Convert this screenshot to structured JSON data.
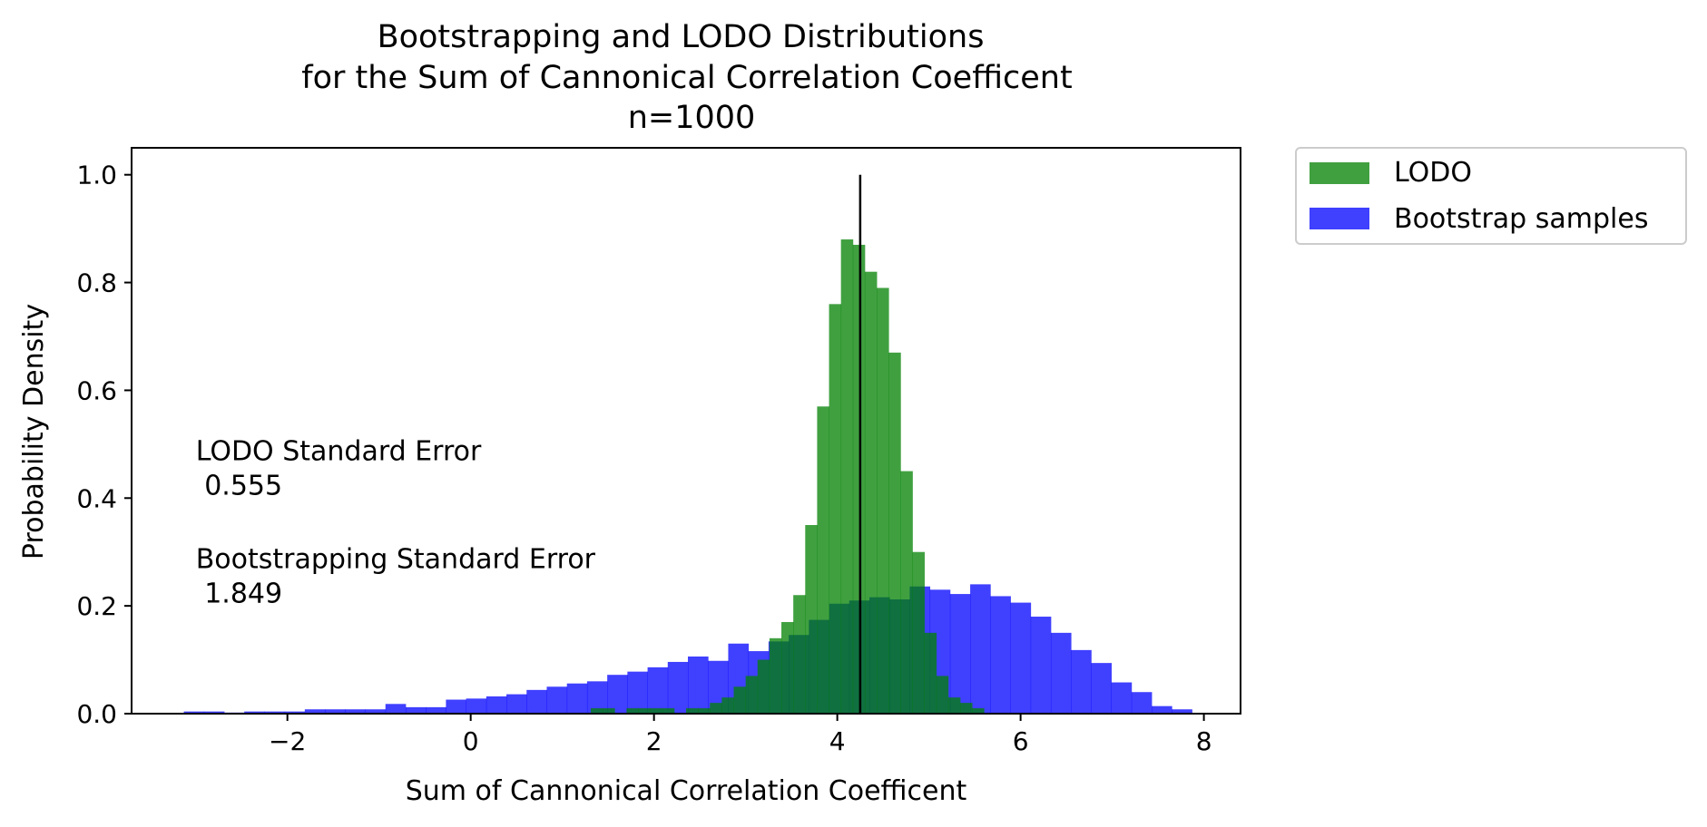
{
  "chart_data": {
    "type": "bar",
    "title_lines": [
      "Bootstrapping and LODO Distributions",
      "for the Sum of Cannonical Correlation Coefficent",
      "n=1000"
    ],
    "xlabel": "Sum of Cannonical Correlation Coefficent",
    "ylabel": "Probability Density",
    "xlim": [
      -3.7,
      8.4
    ],
    "ylim": [
      0,
      1.05
    ],
    "xticks": [
      -2,
      0,
      2,
      4,
      6,
      8
    ],
    "xtick_labels": [
      "−2",
      "0",
      "2",
      "4",
      "6",
      "8"
    ],
    "yticks": [
      0.0,
      0.2,
      0.4,
      0.6,
      0.8,
      1.0
    ],
    "ytick_labels": [
      "0.0",
      "0.2",
      "0.4",
      "0.6",
      "0.8",
      "1.0"
    ],
    "legend": {
      "placement": "outside upper right",
      "entries": [
        "LODO",
        "Bootstrap samples"
      ]
    },
    "series": [
      {
        "name": "LODO",
        "color": "#008000",
        "opacity": 0.75,
        "bin_edges": [
          1.31,
          1.44,
          1.57,
          1.7,
          1.83,
          1.96,
          2.09,
          2.22,
          2.35,
          2.48,
          2.61,
          2.74,
          2.87,
          3.0,
          3.13,
          3.26,
          3.39,
          3.52,
          3.65,
          3.78,
          3.91,
          4.04,
          4.17,
          4.3,
          4.43,
          4.56,
          4.69,
          4.82,
          4.95,
          5.08,
          5.21,
          5.34,
          5.47,
          5.6
        ],
        "values": [
          0.01,
          0.01,
          0.0,
          0.01,
          0.01,
          0.01,
          0.01,
          0.0,
          0.01,
          0.01,
          0.02,
          0.03,
          0.05,
          0.07,
          0.1,
          0.14,
          0.17,
          0.22,
          0.35,
          0.57,
          0.76,
          0.88,
          0.87,
          0.82,
          0.79,
          0.67,
          0.45,
          0.3,
          0.15,
          0.07,
          0.03,
          0.02,
          0.01
        ]
      },
      {
        "name": "Bootstrap samples",
        "color": "#0000ff",
        "opacity": 0.75,
        "bin_edges": [
          -3.13,
          -2.91,
          -2.69,
          -2.47,
          -2.25,
          -2.03,
          -1.81,
          -1.59,
          -1.37,
          -1.15,
          -0.93,
          -0.71,
          -0.49,
          -0.27,
          -0.05,
          0.17,
          0.39,
          0.61,
          0.83,
          1.05,
          1.27,
          1.49,
          1.71,
          1.93,
          2.15,
          2.37,
          2.59,
          2.81,
          3.03,
          3.25,
          3.47,
          3.69,
          3.91,
          4.13,
          4.35,
          4.57,
          4.79,
          5.01,
          5.23,
          5.45,
          5.67,
          5.89,
          6.11,
          6.33,
          6.55,
          6.77,
          6.99,
          7.21,
          7.43,
          7.65,
          7.87
        ],
        "values": [
          0.004,
          0.004,
          0.002,
          0.004,
          0.004,
          0.004,
          0.008,
          0.008,
          0.008,
          0.008,
          0.018,
          0.012,
          0.012,
          0.026,
          0.028,
          0.032,
          0.036,
          0.044,
          0.05,
          0.056,
          0.06,
          0.072,
          0.078,
          0.086,
          0.096,
          0.106,
          0.098,
          0.13,
          0.116,
          0.134,
          0.146,
          0.174,
          0.204,
          0.21,
          0.216,
          0.212,
          0.236,
          0.23,
          0.222,
          0.24,
          0.218,
          0.206,
          0.18,
          0.15,
          0.118,
          0.094,
          0.058,
          0.04,
          0.014,
          0.008
        ]
      }
    ],
    "vline": {
      "x": 4.25,
      "ymax": 1.0,
      "color": "#000000"
    },
    "annotations": [
      {
        "lines": [
          "LODO Standard Error",
          " 0.555"
        ],
        "x": -3.0,
        "y": 0.47
      },
      {
        "lines": [
          "Bootstrapping Standard Error",
          " 1.849"
        ],
        "x": -3.0,
        "y": 0.27
      }
    ]
  }
}
